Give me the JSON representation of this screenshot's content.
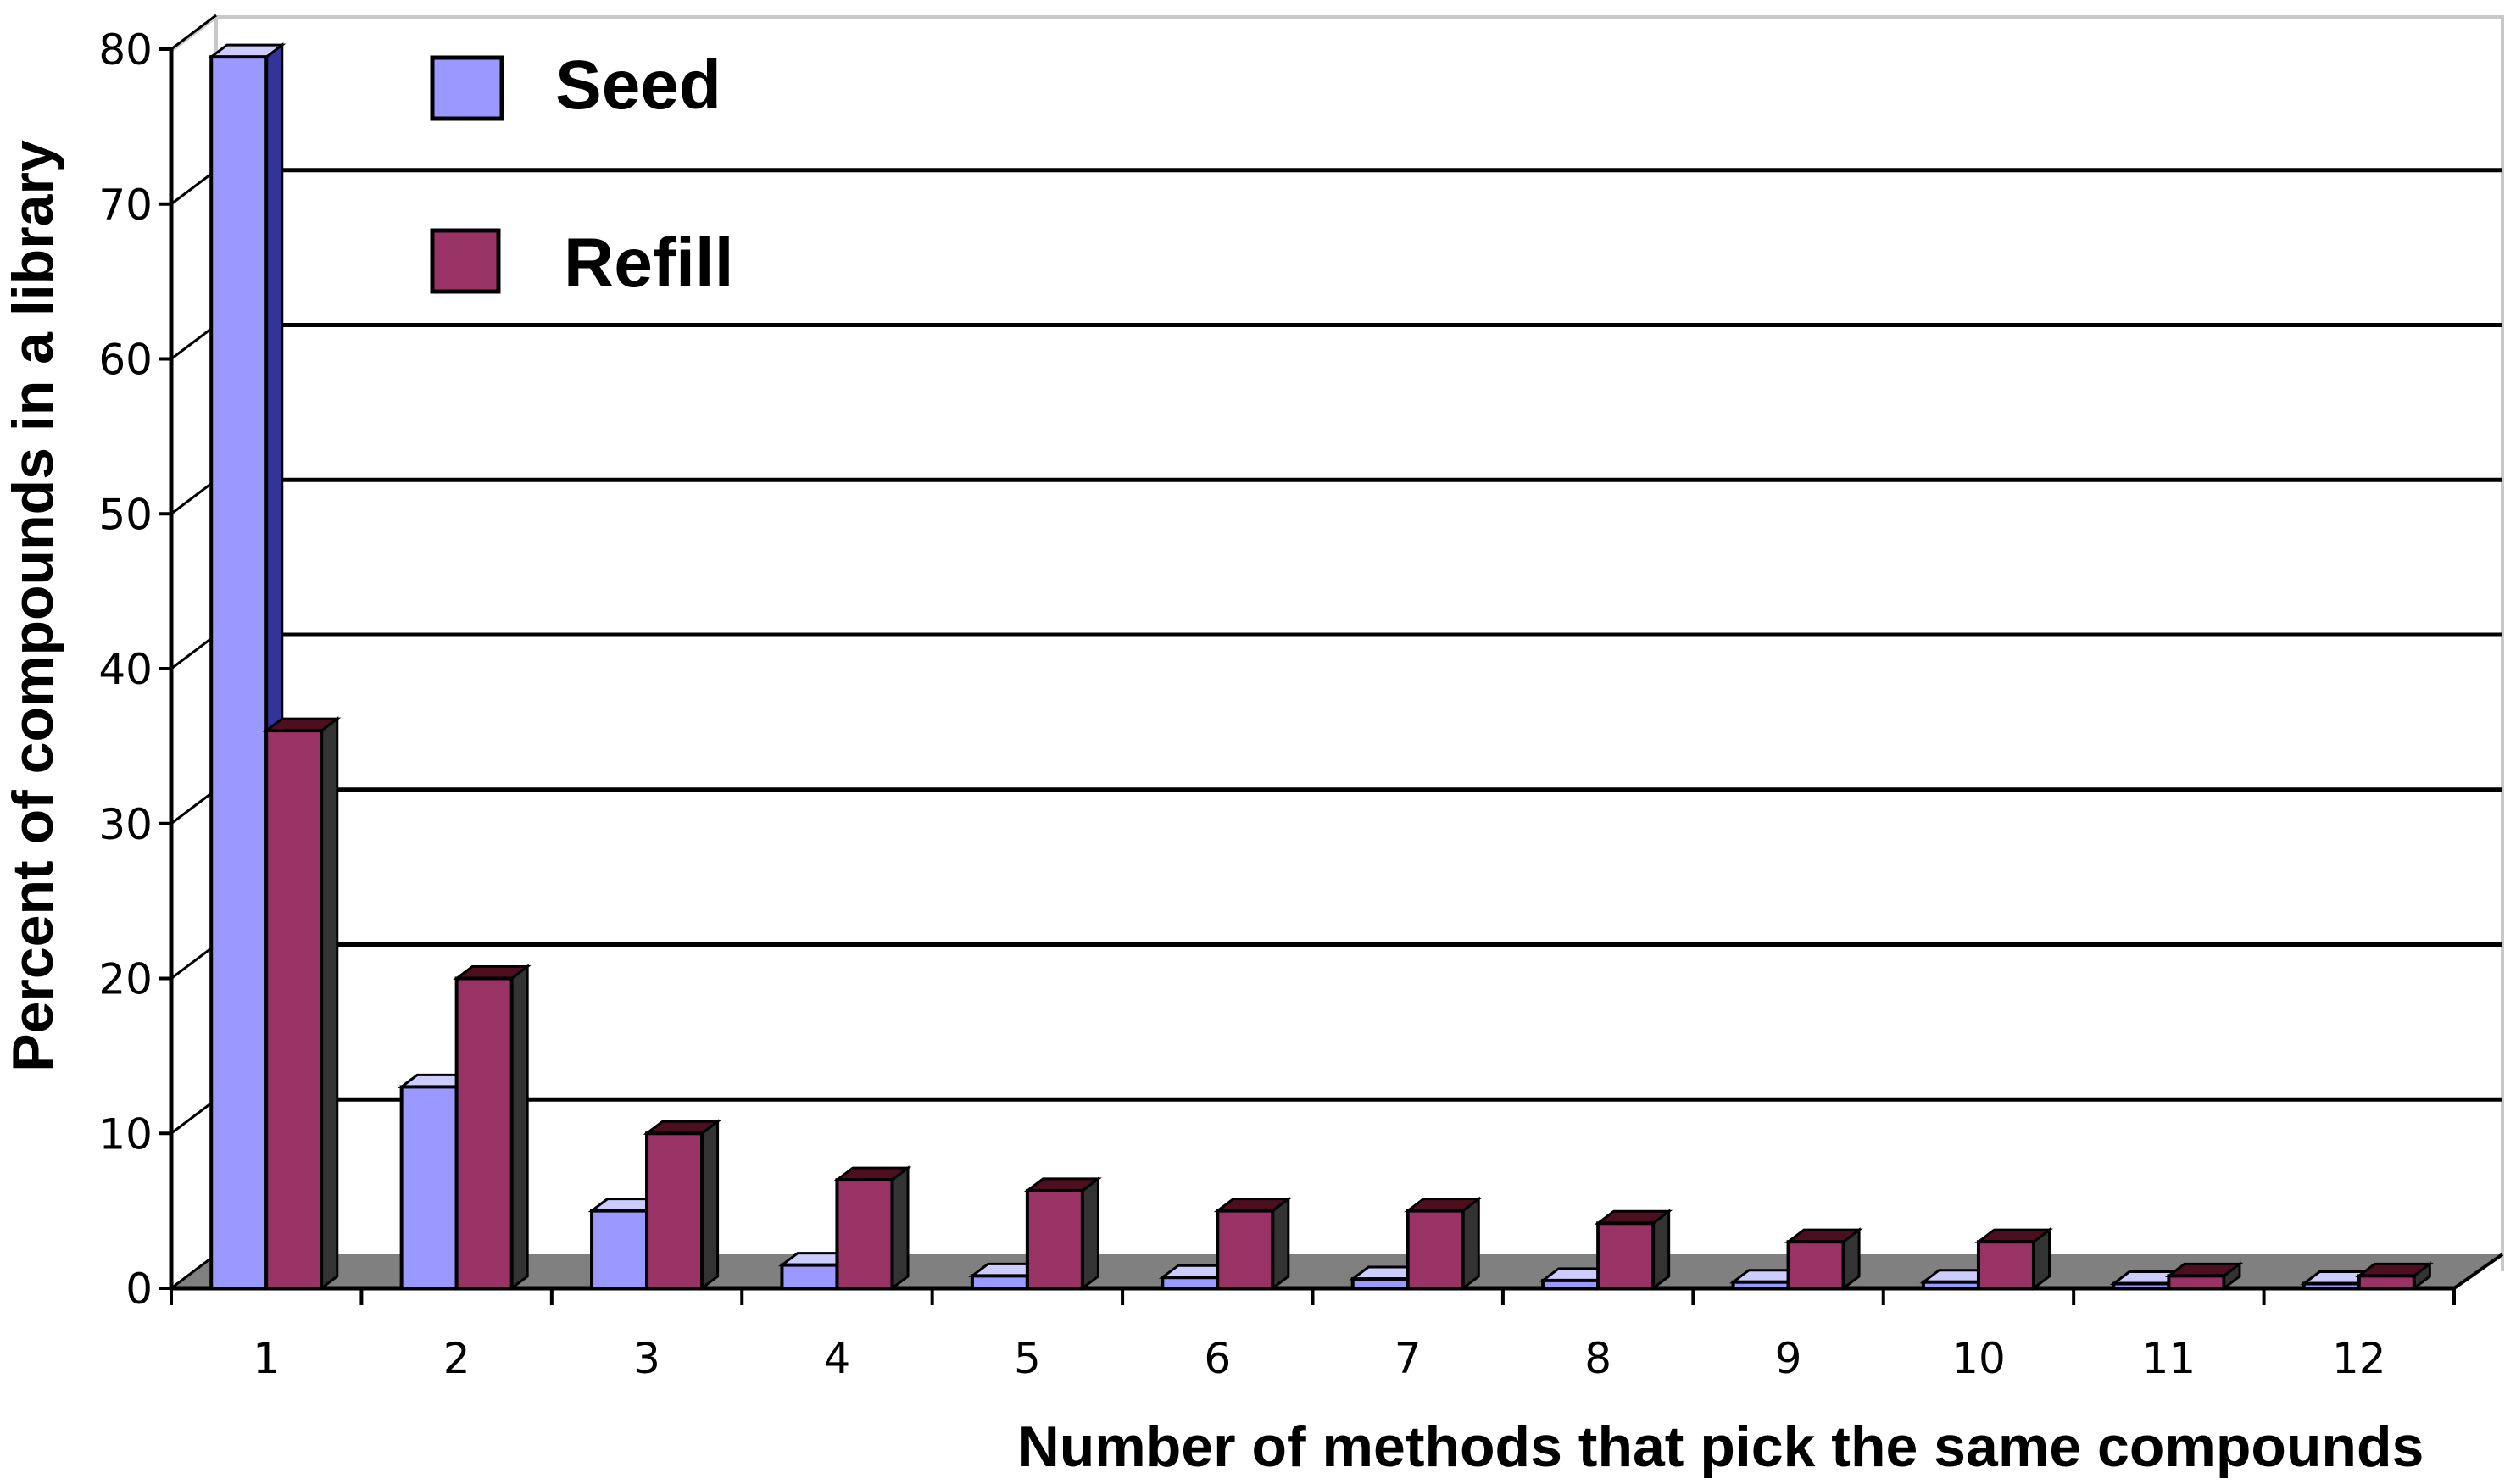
{
  "chart_data": {
    "type": "bar",
    "title": "",
    "xlabel": "Number of methods that pick the same compounds",
    "ylabel": "Percent of compounds in a library",
    "categories": [
      "1",
      "2",
      "3",
      "4",
      "5",
      "6",
      "7",
      "8",
      "9",
      "10",
      "11",
      "12"
    ],
    "ylim": [
      0,
      80
    ],
    "yticks": [
      "0",
      "10",
      "20",
      "30",
      "40",
      "50",
      "60",
      "70",
      "80"
    ],
    "grid": true,
    "legend_position": "top-left",
    "series": [
      {
        "name": "Seed",
        "color": "#9999ff",
        "values": [
          79.5,
          13,
          5,
          1.5,
          0.8,
          0.7,
          0.6,
          0.5,
          0.4,
          0.4,
          0.3,
          0.3
        ]
      },
      {
        "name": "Refill",
        "color": "#993366",
        "values": [
          36,
          20,
          10,
          7,
          6.3,
          5,
          5,
          4.2,
          3,
          3,
          0.8,
          0.8
        ]
      }
    ]
  },
  "colors": {
    "seed_top": "#ccccff",
    "seed_side": "#333399",
    "refill_top": "#4d0f1f",
    "refill_side": "#333333",
    "floor": "#808080",
    "background": "#ffffff"
  }
}
